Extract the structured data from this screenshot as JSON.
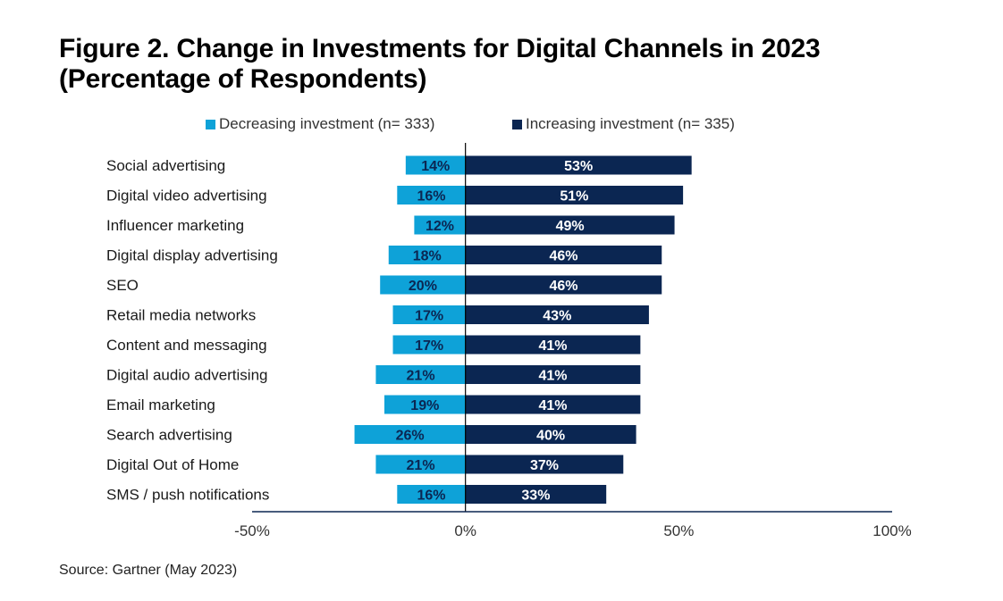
{
  "title_line1": "Figure 2. Change in Investments for Digital Channels in 2023",
  "title_line2": "(Percentage of Respondents)",
  "source": "Source: Gartner (May 2023)",
  "colors": {
    "decreasing": "#0ea2d8",
    "increasing": "#0b2652",
    "axis": "#0b2652",
    "zero_line": "#000000"
  },
  "chart_data": {
    "type": "bar",
    "orientation": "horizontal",
    "stacked": "diverging",
    "categories": [
      "Social advertising",
      "Digital video advertising",
      "Influencer marketing",
      "Digital display advertising",
      "SEO",
      "Retail media networks",
      "Content and messaging",
      "Digital audio advertising",
      "Email marketing",
      "Search advertising",
      "Digital Out of Home",
      "SMS / push notifications"
    ],
    "series": [
      {
        "name": "Decreasing investment (n= 333)",
        "values": [
          14,
          16,
          12,
          18,
          20,
          17,
          17,
          21,
          19,
          26,
          21,
          16
        ],
        "labels": [
          "14%",
          "16%",
          "12%",
          "18%",
          "20%",
          "17%",
          "17%",
          "21%",
          "19%",
          "26%",
          "21%",
          "16%"
        ]
      },
      {
        "name": "Increasing investment (n= 335)",
        "values": [
          53,
          51,
          49,
          46,
          46,
          43,
          41,
          41,
          41,
          40,
          37,
          33
        ],
        "labels": [
          "53%",
          "51%",
          "49%",
          "46%",
          "46%",
          "43%",
          "41%",
          "41%",
          "41%",
          "40%",
          "37%",
          "33%"
        ]
      }
    ],
    "xlim": [
      -50,
      100
    ],
    "xticks": [
      -50,
      0,
      50,
      100
    ],
    "xtick_labels": [
      "-50%",
      "0%",
      "50%",
      "100%"
    ],
    "legend_position": "top",
    "grid": false
  }
}
